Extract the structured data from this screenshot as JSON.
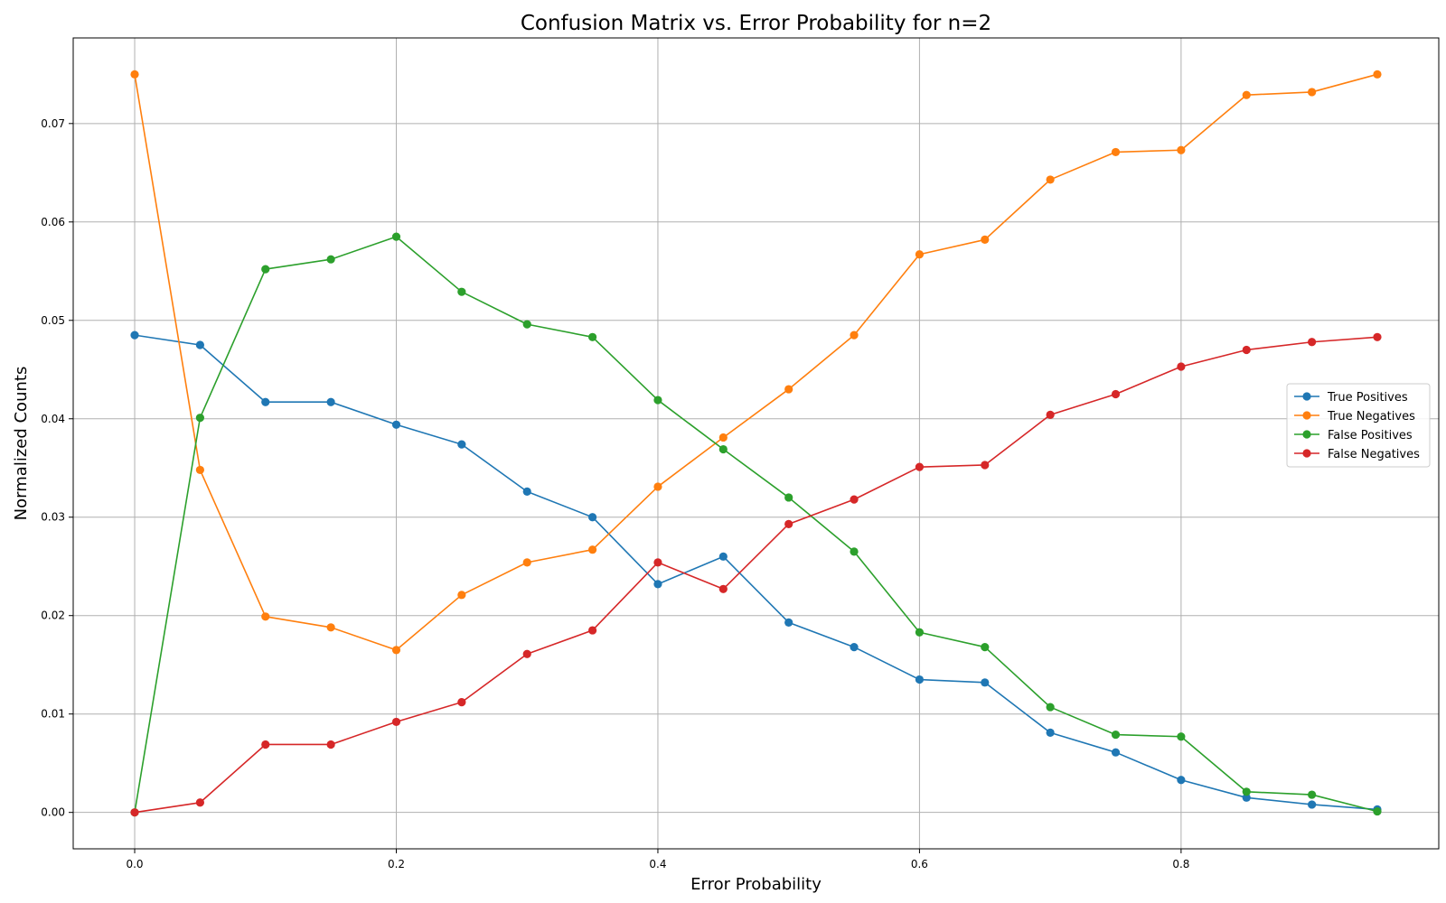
{
  "chart_data": {
    "type": "line",
    "title": "Confusion Matrix vs. Error Probability for n=2",
    "xlabel": "Error Probability",
    "ylabel": "Normalized Counts",
    "xlim": [
      -0.047,
      0.997
    ],
    "ylim": [
      -0.0037,
      0.0787
    ],
    "xticks": [
      0.0,
      0.2,
      0.4,
      0.6,
      0.8
    ],
    "xtick_labels": [
      "0.0",
      "0.2",
      "0.4",
      "0.6",
      "0.8"
    ],
    "yticks": [
      0.0,
      0.01,
      0.02,
      0.03,
      0.04,
      0.05,
      0.06,
      0.07
    ],
    "ytick_labels": [
      "0.00",
      "0.01",
      "0.02",
      "0.03",
      "0.04",
      "0.05",
      "0.06",
      "0.07"
    ],
    "grid": true,
    "legend_position": "center-right",
    "x": [
      0.0,
      0.05,
      0.1,
      0.15,
      0.2,
      0.25,
      0.3,
      0.35,
      0.4,
      0.45,
      0.5,
      0.55,
      0.6,
      0.65,
      0.7,
      0.75,
      0.8,
      0.85,
      0.9,
      0.95
    ],
    "series": [
      {
        "name": "True Positives",
        "color": "#1f77b4",
        "values": [
          0.0485,
          0.0475,
          0.0417,
          0.0417,
          0.0394,
          0.0374,
          0.0326,
          0.03,
          0.0232,
          0.026,
          0.0193,
          0.0168,
          0.0135,
          0.0132,
          0.0081,
          0.0061,
          0.0033,
          0.0015,
          0.0008,
          0.0003
        ]
      },
      {
        "name": "True Negatives",
        "color": "#ff7f0e",
        "values": [
          0.075,
          0.0348,
          0.0199,
          0.0188,
          0.0165,
          0.0221,
          0.0254,
          0.0267,
          0.0331,
          0.0381,
          0.043,
          0.0485,
          0.0567,
          0.0582,
          0.0643,
          0.0671,
          0.0673,
          0.0729,
          0.0732,
          0.075
        ]
      },
      {
        "name": "False Positives",
        "color": "#2ca02c",
        "values": [
          0.0,
          0.0401,
          0.0552,
          0.0562,
          0.0585,
          0.0529,
          0.0496,
          0.0483,
          0.0419,
          0.0369,
          0.032,
          0.0265,
          0.0183,
          0.0168,
          0.0107,
          0.0079,
          0.0077,
          0.0021,
          0.0018,
          0.0001
        ]
      },
      {
        "name": "False Negatives",
        "color": "#d62728",
        "values": [
          0.0,
          0.001,
          0.0069,
          0.0069,
          0.0092,
          0.0112,
          0.0161,
          0.0185,
          0.0254,
          0.0227,
          0.0293,
          0.0318,
          0.0351,
          0.0353,
          0.0404,
          0.0425,
          0.0453,
          0.047,
          0.0478,
          0.0483
        ]
      }
    ]
  }
}
